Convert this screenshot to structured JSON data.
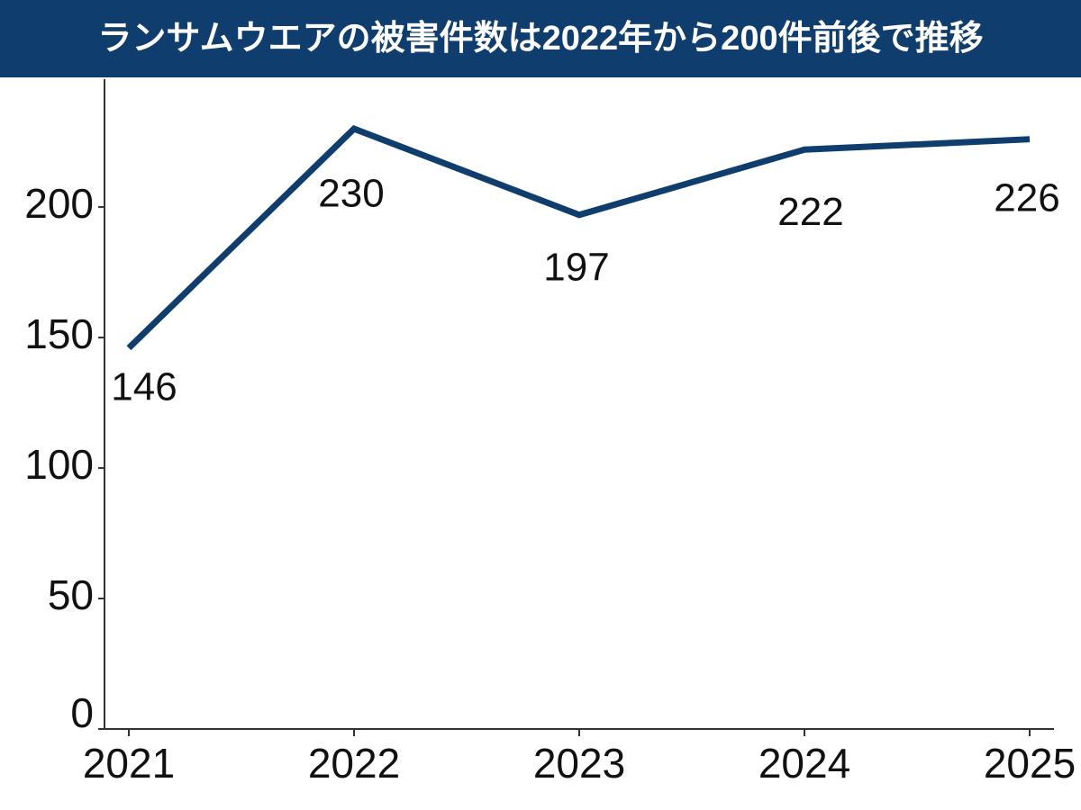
{
  "chart_data": {
    "type": "line",
    "title": "ランサムウエアの被害件数は2022年から200件前後で推移",
    "categories": [
      "2021",
      "2022",
      "2023",
      "2024",
      "2025"
    ],
    "values": [
      146,
      230,
      197,
      222,
      226
    ],
    "color": "#0f3d6e",
    "ylim": [
      0,
      249
    ],
    "yticks": [
      0,
      50,
      100,
      150,
      200
    ]
  }
}
